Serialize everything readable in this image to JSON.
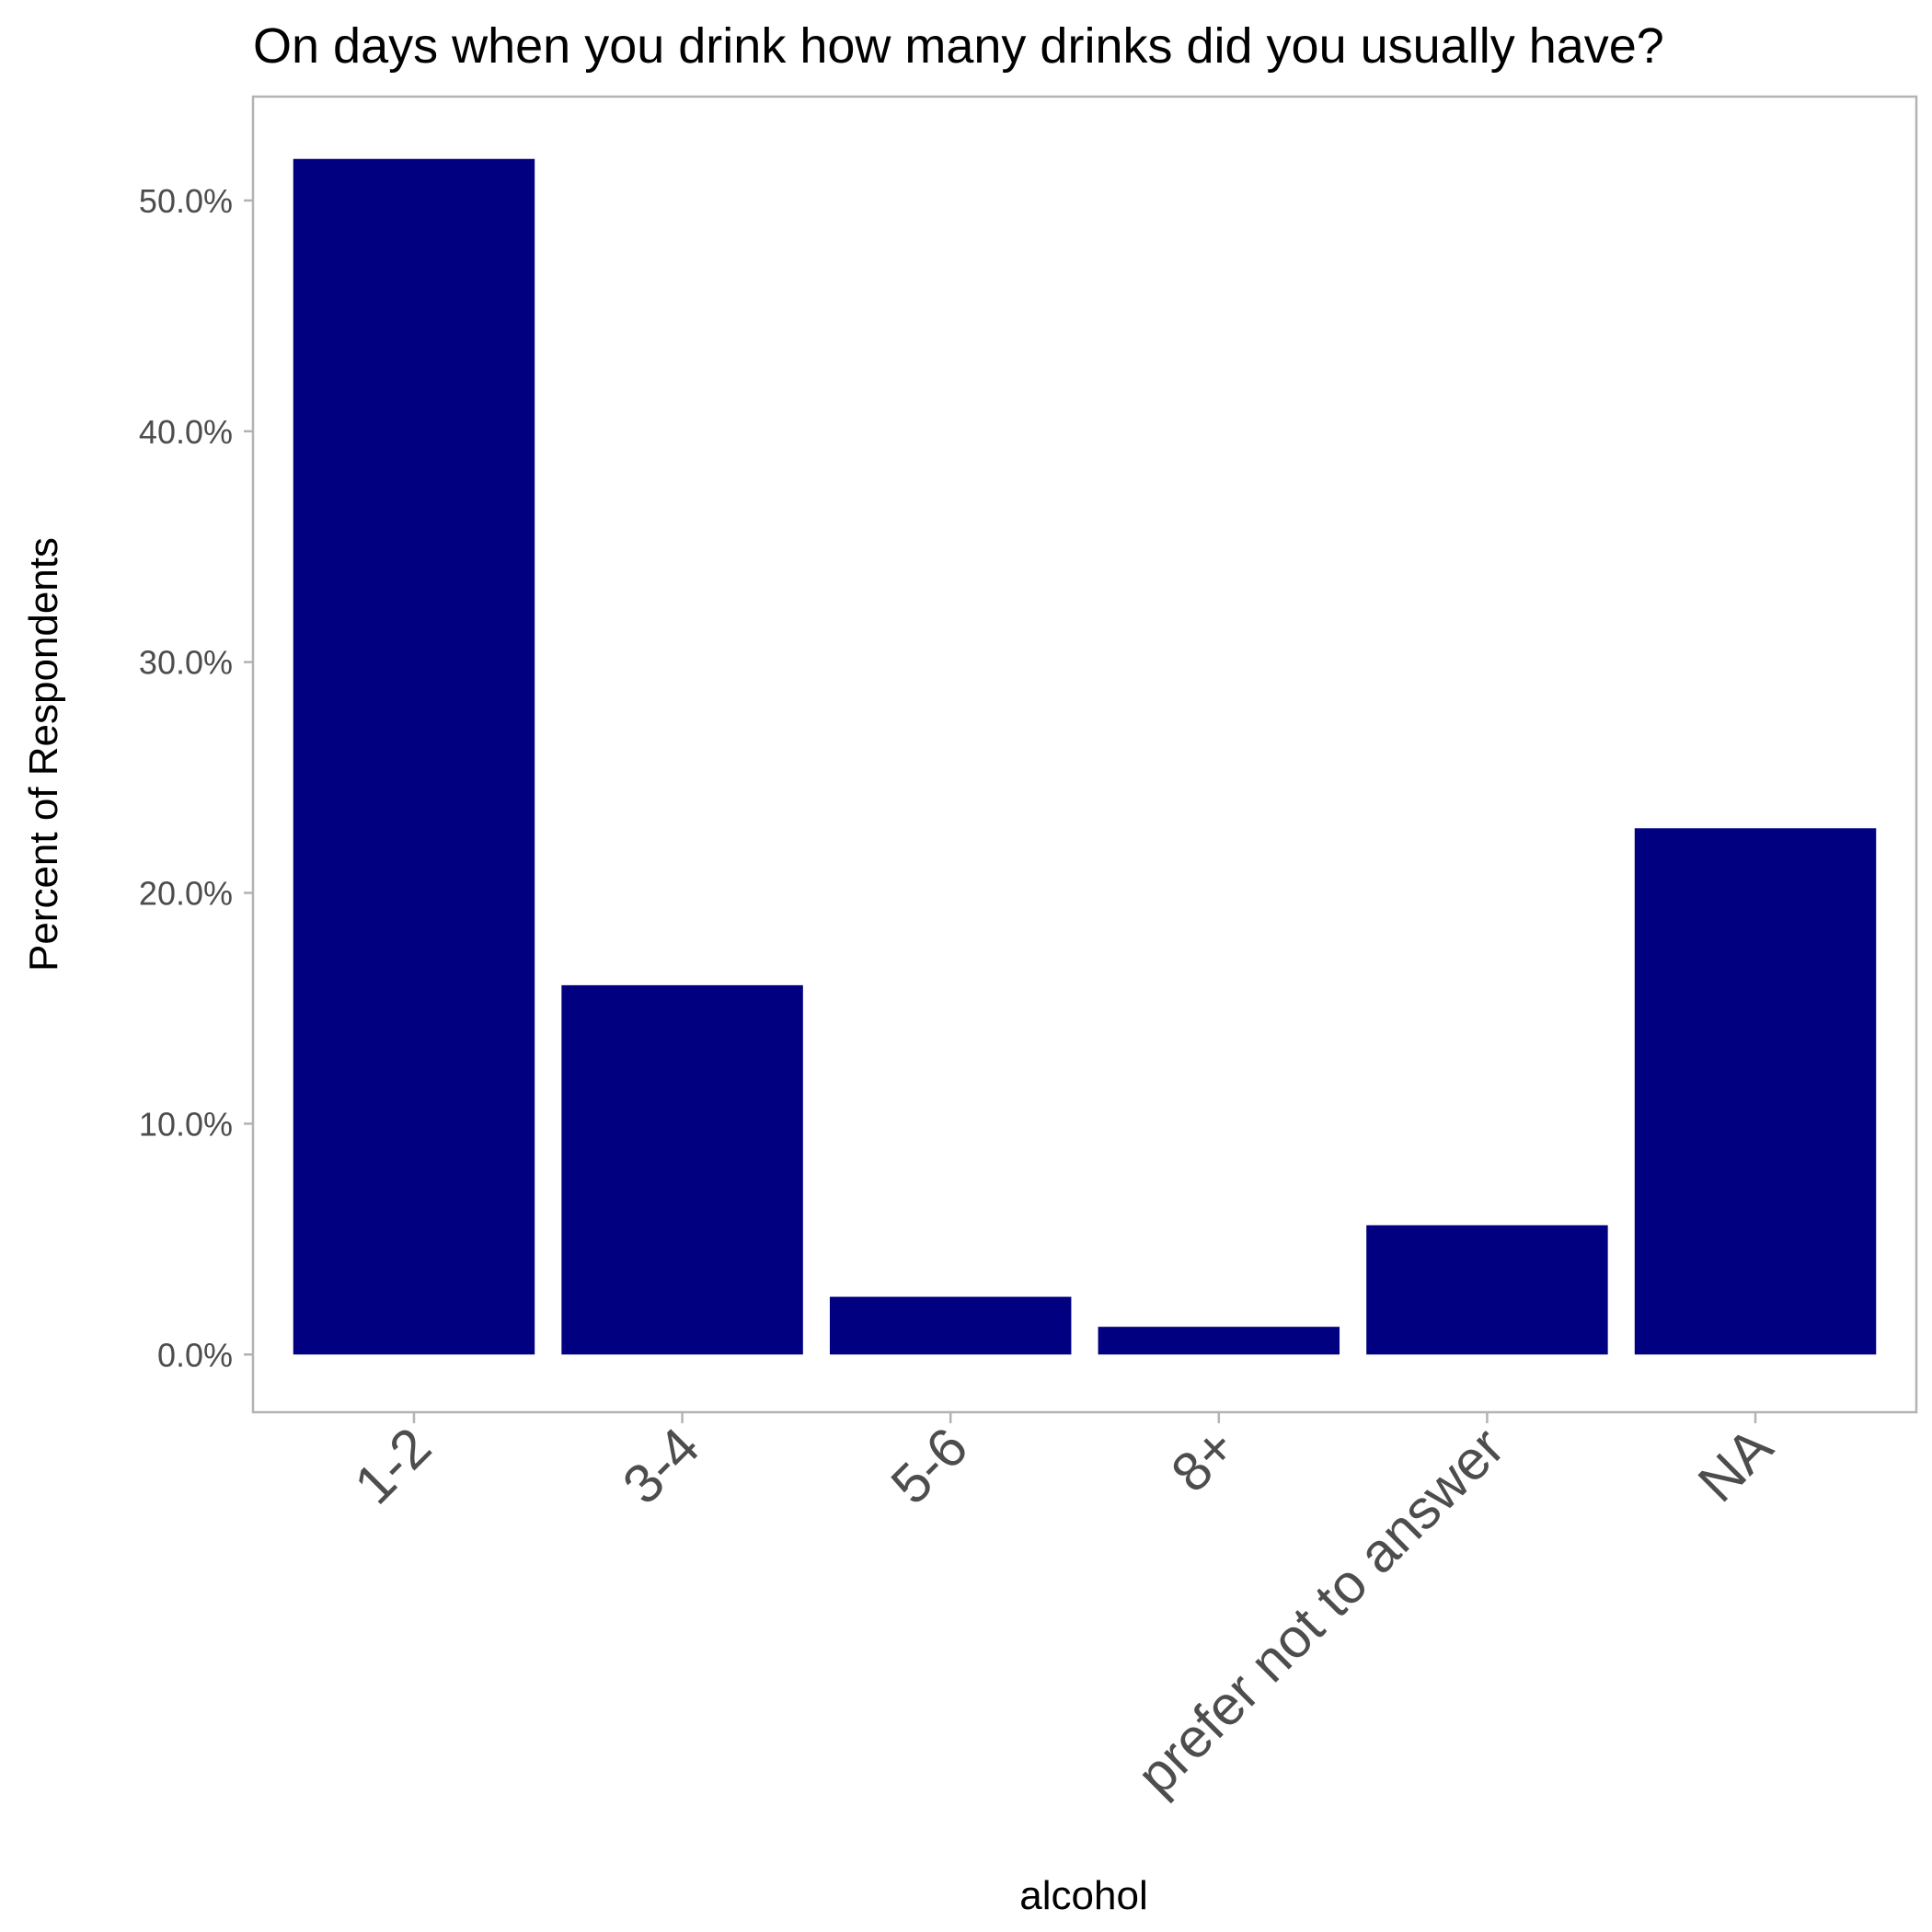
{
  "chart_data": {
    "type": "bar",
    "title": "On days when you drink how many drinks did you usually have?",
    "xlabel": "alcohol",
    "ylabel": "Percent of Respondents",
    "categories": [
      "1-2",
      "3-4",
      "5-6",
      "8+",
      "prefer not to answer",
      "NA"
    ],
    "values": [
      51.8,
      16.0,
      2.5,
      1.2,
      5.6,
      22.8
    ],
    "ylim": [
      -2.5,
      54.5
    ],
    "yticks": [
      0,
      10,
      20,
      30,
      40,
      50
    ],
    "ytick_labels": [
      "0.0%",
      "10.0%",
      "20.0%",
      "30.0%",
      "40.0%",
      "50.0%"
    ],
    "grid": false,
    "bar_color": "#000080",
    "panel_border_color": "#b3b3b3"
  }
}
